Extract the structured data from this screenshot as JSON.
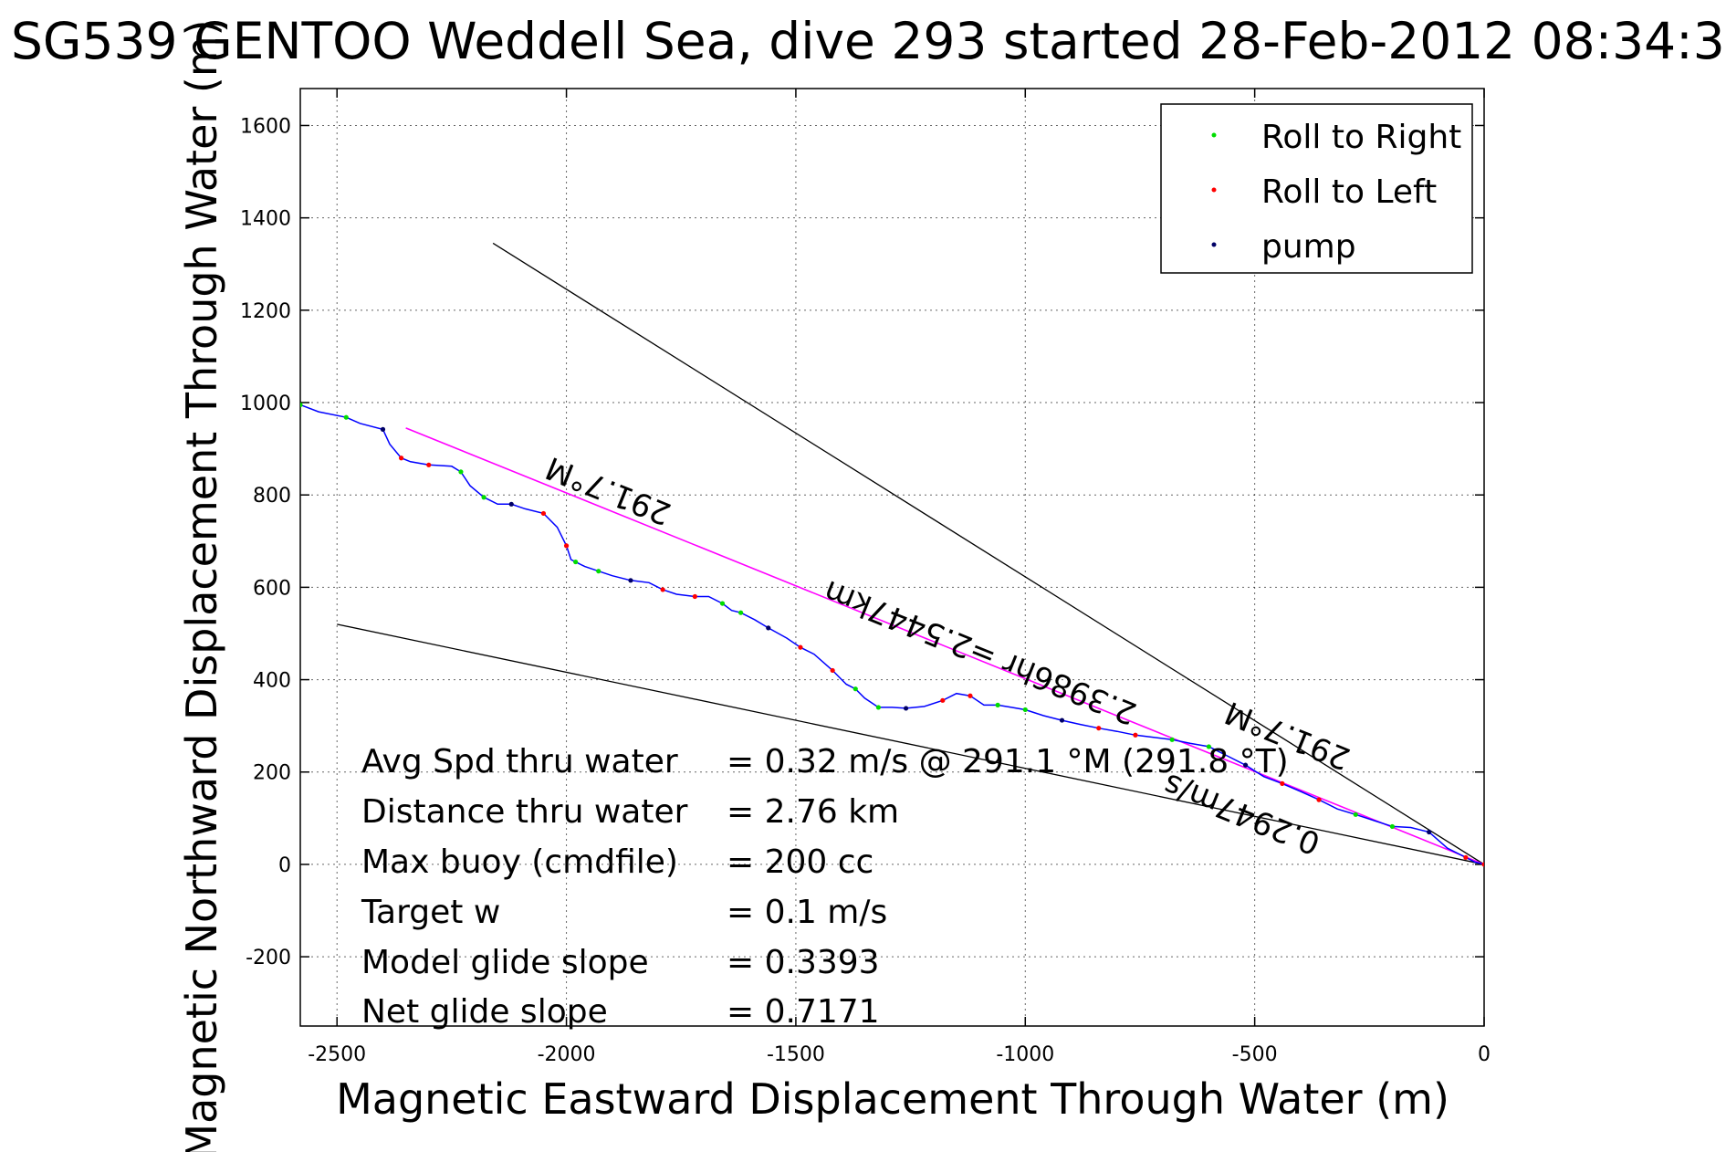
{
  "chart_data": {
    "type": "line",
    "title": "SG539 GENTOO Weddell Sea, dive 293 started 28-Feb-2012 08:34:3",
    "xlabel": "Magnetic Eastward Displacement Through Water (m)",
    "ylabel": "Magnetic Northward Displacement Through Water (m)",
    "xlim": [
      -2580,
      0
    ],
    "ylim": [
      -350,
      1680
    ],
    "x_ticks": [
      -2500,
      -2000,
      -1500,
      -1000,
      -500,
      0
    ],
    "y_ticks": [
      -200,
      0,
      200,
      400,
      600,
      800,
      1000,
      1200,
      1400,
      1600
    ],
    "grid": true,
    "legend_placement": "top-right",
    "legend": [
      {
        "label": "Roll to Right",
        "color": "#00dd00"
      },
      {
        "label": "Roll to Left",
        "color": "#ff0000"
      },
      {
        "label": "pump",
        "color": "#000066"
      }
    ],
    "colors": {
      "track": "#0000ff",
      "average_line": "#ff00ff",
      "cone_lines": "#000000"
    },
    "track": {
      "x": [
        -2580,
        -2540,
        -2480,
        -2450,
        -2400,
        -2385,
        -2360,
        -2340,
        -2300,
        -2250,
        -2230,
        -2210,
        -2180,
        -2150,
        -2120,
        -2090,
        -2050,
        -2020,
        -2000,
        -1990,
        -1980,
        -1960,
        -1930,
        -1900,
        -1860,
        -1820,
        -1790,
        -1760,
        -1720,
        -1690,
        -1660,
        -1640,
        -1620,
        -1590,
        -1560,
        -1520,
        -1490,
        -1460,
        -1420,
        -1390,
        -1370,
        -1350,
        -1320,
        -1290,
        -1260,
        -1220,
        -1180,
        -1150,
        -1120,
        -1090,
        -1060,
        -1030,
        -1000,
        -960,
        -920,
        -880,
        -840,
        -800,
        -760,
        -720,
        -680,
        -640,
        -600,
        -560,
        -520,
        -480,
        -440,
        -400,
        -360,
        -320,
        -280,
        -240,
        -200,
        -160,
        -120,
        -80,
        -40,
        -20,
        0
      ],
      "y": [
        995,
        980,
        968,
        955,
        942,
        910,
        880,
        872,
        865,
        862,
        850,
        820,
        795,
        780,
        780,
        770,
        760,
        730,
        690,
        660,
        655,
        645,
        635,
        625,
        615,
        610,
        595,
        585,
        580,
        580,
        565,
        550,
        545,
        530,
        512,
        490,
        470,
        455,
        420,
        390,
        380,
        360,
        340,
        340,
        338,
        342,
        355,
        370,
        365,
        345,
        345,
        340,
        335,
        322,
        312,
        303,
        295,
        288,
        280,
        275,
        270,
        262,
        255,
        235,
        215,
        190,
        175,
        158,
        140,
        120,
        108,
        95,
        82,
        80,
        70,
        35,
        15,
        5,
        0
      ]
    },
    "average_line": {
      "x": [
        -2350,
        0
      ],
      "y": [
        945,
        0
      ],
      "label": "291.7°M"
    },
    "upper_cone_line": {
      "x": [
        -2160,
        0
      ],
      "y": [
        1345,
        0
      ]
    },
    "lower_cone_line": {
      "x": [
        -2500,
        0
      ],
      "y": [
        520,
        0
      ]
    },
    "annotations": [
      {
        "text": "291.7°M",
        "x": -1900,
        "y": 830
      },
      {
        "text": "2.3986hr =2.5447km",
        "x": -1090,
        "y": 480
      },
      {
        "text": "291.7°M",
        "x": -420,
        "y": 300
      },
      {
        "text": "0.2947m/s",
        "x": -520,
        "y": 130
      }
    ],
    "stats_text": [
      "Avg Spd thru water      =  0.32 m/s @ 291.1 °M (291.8 °T)",
      "Distance thru water     =  2.76 km",
      "Max buoy (cmdfile)       = 200 cc",
      "Target w                       = 0.1 m/s",
      "Model glide slope         = 0.3393",
      "Net glide slope             = 0.7171"
    ]
  }
}
